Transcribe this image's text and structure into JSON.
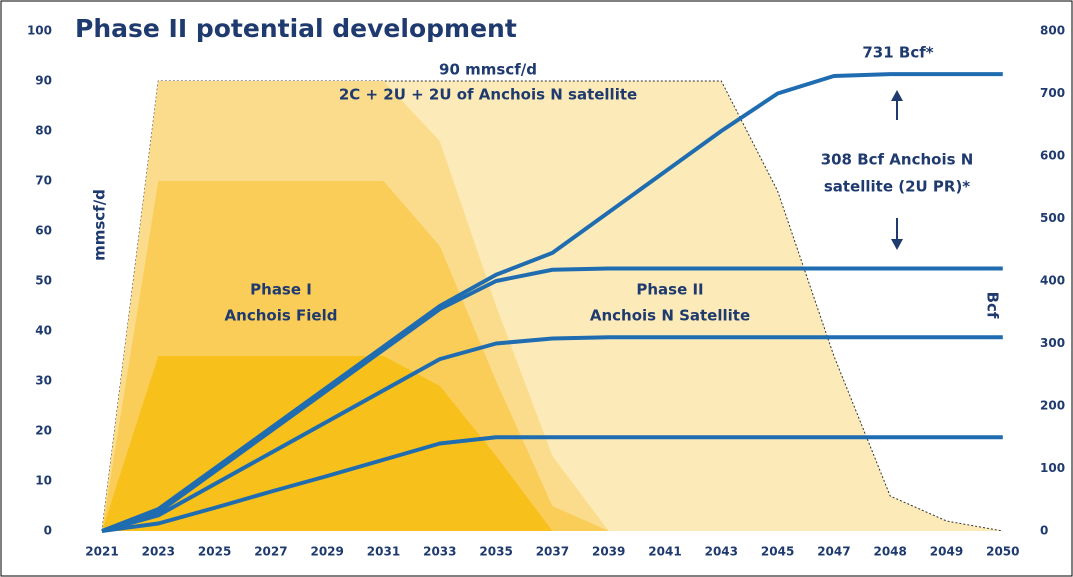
{
  "chart_data": {
    "type": "area_line",
    "title": "Phase II potential development",
    "y_label": "mmscf/d",
    "y2_label": "Bcf",
    "categories": [
      "2021",
      "2023",
      "2025",
      "2027",
      "2029",
      "2031",
      "2033",
      "2035",
      "2037",
      "2039",
      "2041",
      "2043",
      "2045",
      "2047",
      "2048",
      "2049",
      "2050"
    ],
    "ylim": [
      0,
      100
    ],
    "yticks": [
      0,
      10,
      20,
      30,
      40,
      50,
      60,
      70,
      80,
      90,
      100
    ],
    "y2lim": [
      0,
      800
    ],
    "y2ticks": [
      0,
      100,
      200,
      300,
      400,
      500,
      600,
      700,
      800
    ],
    "areas": [
      {
        "color": "#fcebb8",
        "values": [
          0,
          90,
          90,
          90,
          90,
          90,
          90,
          90,
          90,
          90,
          90,
          90,
          68,
          35,
          7,
          2,
          0
        ]
      },
      {
        "color": "#fbdc8c",
        "values": [
          0,
          90,
          90,
          90,
          90,
          90,
          78,
          45,
          15,
          0,
          0,
          0,
          0,
          0,
          0,
          0,
          0
        ]
      },
      {
        "color": "#f9cd58",
        "values": [
          0,
          70,
          70,
          70,
          70,
          70,
          57,
          30,
          5,
          0,
          0,
          0,
          0,
          0,
          0,
          0,
          0
        ]
      },
      {
        "color": "#f8c01a",
        "values": [
          0,
          35,
          35,
          35,
          35,
          35,
          29,
          15,
          0,
          0,
          0,
          0,
          0,
          0,
          0,
          0,
          0
        ]
      }
    ],
    "series": [
      {
        "color": "#1f6db0",
        "axis": "y2",
        "values": [
          0,
          35,
          100,
          165,
          230,
          295,
          360,
          410,
          445,
          510,
          575,
          640,
          700,
          728,
          731,
          731,
          731
        ]
      },
      {
        "color": "#1f6db0",
        "axis": "y2",
        "values": [
          0,
          30,
          95,
          160,
          225,
          290,
          355,
          400,
          418,
          420,
          420,
          420,
          420,
          420,
          420,
          420,
          420
        ]
      },
      {
        "color": "#1f6db0",
        "axis": "y2",
        "values": [
          0,
          25,
          75,
          125,
          175,
          225,
          275,
          300,
          308,
          310,
          310,
          310,
          310,
          310,
          310,
          310,
          310
        ]
      },
      {
        "color": "#1f6db0",
        "axis": "y2",
        "values": [
          0,
          12,
          37,
          63,
          88,
          114,
          140,
          150,
          150,
          150,
          150,
          150,
          150,
          150,
          150,
          150,
          150
        ]
      }
    ],
    "annotations": [
      "90 mmscf/d",
      "2C + 2U + 2U of Anchois N satellite",
      "Phase I",
      "Anchois Field",
      "Phase II",
      "Anchois N Satellite",
      "731 Bcf*",
      "308 Bcf Anchois N",
      "satellite (2U PR)*"
    ]
  }
}
